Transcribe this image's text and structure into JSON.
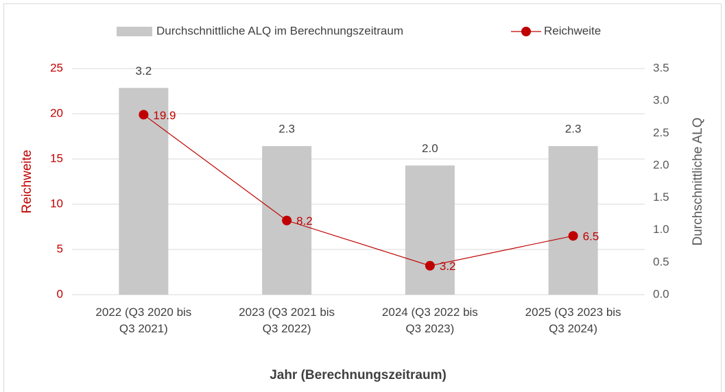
{
  "chart_data": {
    "type": "bar_line",
    "categories": [
      "2022 (Q3 2020 bis Q3 2021)",
      "2023 (Q3 2021 bis Q3 2022)",
      "2024 (Q3 2022 bis Q3 2023)",
      "2025 (Q3 2023 bis Q3 2024)"
    ],
    "series": [
      {
        "name": "Durchschnittliche ALQ im Berechnungszeitraum",
        "type": "bar",
        "axis": "y2",
        "color": "#c8c8c8",
        "values": [
          3.2,
          2.3,
          2.0,
          2.3
        ],
        "value_labels": [
          "3.2",
          "2.3",
          "2.0",
          "2.3"
        ]
      },
      {
        "name": "Reichweite",
        "type": "line",
        "axis": "y",
        "color": "#c00000",
        "values": [
          19.9,
          8.2,
          3.2,
          6.5
        ]
      }
    ],
    "ylabel": "Reichweite",
    "y2label": "Durchschnittliche ALQ",
    "xlabel": "Jahr (Berechnungszeitraum)",
    "ylim": [
      0,
      25
    ],
    "yticks": [
      0,
      5,
      10,
      15,
      20,
      25
    ],
    "y2lim": [
      0,
      3.5
    ],
    "y2ticks": [
      {
        "value": 0,
        "label": "0.0"
      },
      0.5,
      {
        "value": 1,
        "label": "1.0"
      },
      1.5,
      {
        "value": 2,
        "label": "2.0"
      },
      2.5,
      {
        "value": 3,
        "label": "3.0"
      },
      3.5
    ],
    "grid": true,
    "legend": "top"
  }
}
